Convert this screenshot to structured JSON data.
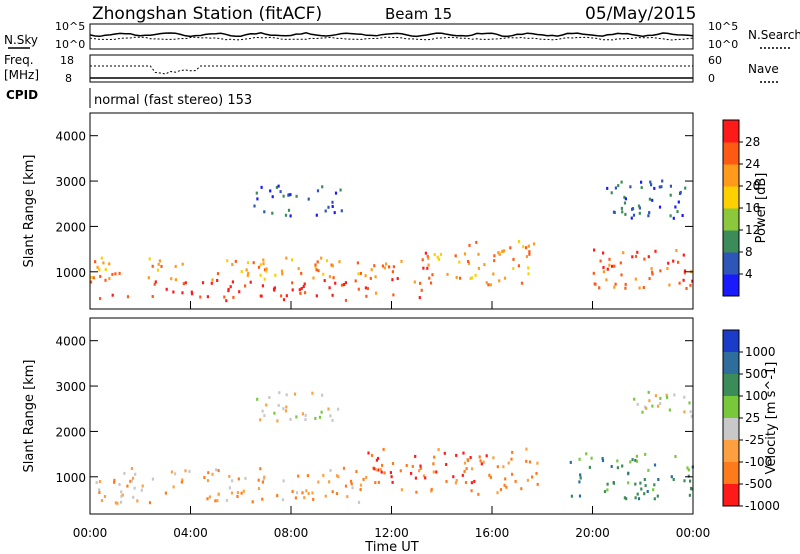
{
  "header": {
    "station": "Zhongshan Station (fitACF)",
    "beam": "Beam 15",
    "date": "05/May/2015"
  },
  "status": {
    "nsky_label": "N.Sky",
    "nsearch_label": "N.Search",
    "freq_label": "Freq.",
    "freq_unit": "[MHz]",
    "nave_label": "Nave",
    "cpid_label": "CPID",
    "cpid_value": "normal (fast stereo) 153",
    "noise_ticks_left": [
      "10^5",
      "10^0"
    ],
    "noise_ticks_right": [
      "10^5",
      "10^0"
    ],
    "freq_ticks": [
      "18",
      "8"
    ],
    "nave_ticks": [
      "60",
      "0"
    ]
  },
  "chart_data": [
    {
      "type": "heatmap",
      "title": "Power",
      "ylabel": "Slant Range [km]",
      "xlabel": "Time UT",
      "x_ticks": [
        "00:00",
        "04:00",
        "08:00",
        "12:00",
        "16:00",
        "20:00",
        "00:00"
      ],
      "y_ticks": [
        1000,
        2000,
        3000,
        4000
      ],
      "ylim": [
        180,
        4500
      ],
      "xlim_hours": [
        0,
        24
      ],
      "colorbar": {
        "label": "Power [dB]",
        "ticks": [
          "4",
          "8",
          "12",
          "16",
          "20",
          "24",
          "28"
        ],
        "colors": [
          "#1a1aff",
          "#2e55b8",
          "#3c8c5a",
          "#8cc83c",
          "#ffd000",
          "#ff9a1a",
          "#ff5a14",
          "#ff1a1a"
        ]
      },
      "regions": [
        {
          "t0": 0.0,
          "t1": 11.0,
          "r0": 350,
          "r1": 800,
          "c": 7
        },
        {
          "t0": 0.0,
          "t1": 11.0,
          "r0": 800,
          "r1": 1300,
          "c": 5
        },
        {
          "t0": 11.0,
          "t1": 13.5,
          "r0": 400,
          "r1": 1400,
          "c": 6
        },
        {
          "t0": 13.5,
          "t1": 17.8,
          "r0": 700,
          "r1": 1700,
          "c": 5
        },
        {
          "t0": 20.0,
          "t1": 24.0,
          "r0": 600,
          "r1": 1500,
          "c": 6
        },
        {
          "t0": 6.5,
          "t1": 10.0,
          "r0": 2200,
          "r1": 2900,
          "c": 1
        },
        {
          "t0": 20.5,
          "t1": 24.0,
          "r0": 2100,
          "r1": 3000,
          "c": 1
        }
      ]
    },
    {
      "type": "heatmap",
      "title": "Velocity",
      "ylabel": "Slant Range [km]",
      "xlabel": "Time UT",
      "x_ticks": [
        "00:00",
        "04:00",
        "08:00",
        "12:00",
        "16:00",
        "20:00",
        "00:00"
      ],
      "y_ticks": [
        1000,
        2000,
        3000,
        4000
      ],
      "ylim": [
        180,
        4500
      ],
      "xlim_hours": [
        0,
        24
      ],
      "colorbar": {
        "label": "Velocity [m s^-1]",
        "ticks": [
          "1000",
          "500",
          "100",
          "25",
          "-25",
          "-100",
          "-500",
          "-1000"
        ],
        "colors": [
          "#1a3cc8",
          "#2e6e9c",
          "#3c8c5a",
          "#78c83c",
          "#c8c8c8",
          "#ffa040",
          "#ff7a1a",
          "#ff1a1a"
        ]
      },
      "regions": [
        {
          "t0": 0.0,
          "t1": 11.0,
          "r0": 400,
          "r1": 1200,
          "c": 5
        },
        {
          "t0": 11.0,
          "t1": 17.8,
          "r0": 600,
          "r1": 1600,
          "c": 6
        },
        {
          "t0": 19.0,
          "t1": 24.0,
          "r0": 500,
          "r1": 1500,
          "c": 2
        },
        {
          "t0": 6.5,
          "t1": 10.0,
          "r0": 2200,
          "r1": 2900,
          "c": 4
        },
        {
          "t0": 21.5,
          "t1": 24.0,
          "r0": 2300,
          "r1": 2900,
          "c": 4
        }
      ]
    }
  ]
}
